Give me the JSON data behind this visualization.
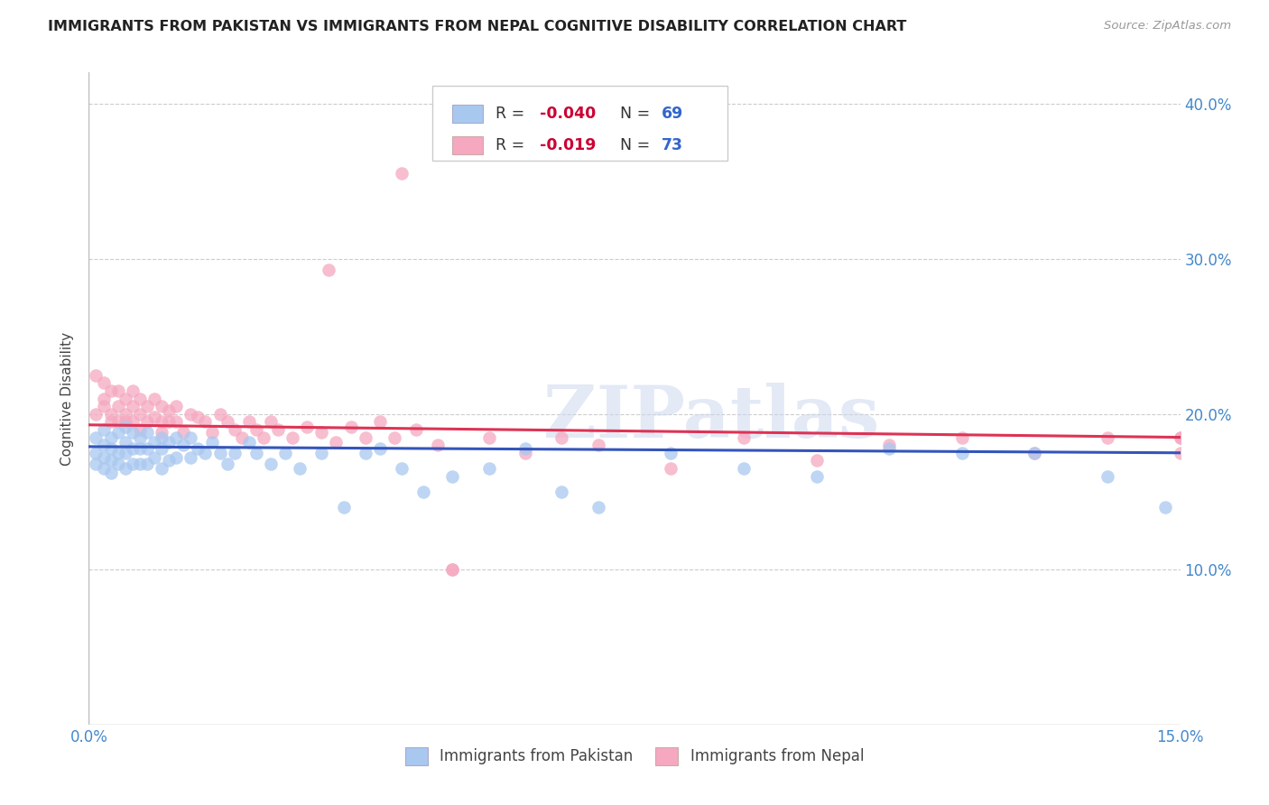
{
  "title": "IMMIGRANTS FROM PAKISTAN VS IMMIGRANTS FROM NEPAL COGNITIVE DISABILITY CORRELATION CHART",
  "source": "Source: ZipAtlas.com",
  "ylabel_label": "Cognitive Disability",
  "x_min": 0.0,
  "x_max": 0.15,
  "y_min": 0.0,
  "y_max": 0.42,
  "pakistan_color": "#a8c8f0",
  "nepal_color": "#f5a8c0",
  "pakistan_R": -0.04,
  "pakistan_N": 69,
  "nepal_R": -0.019,
  "nepal_N": 73,
  "pakistan_line_color": "#3355bb",
  "nepal_line_color": "#dd3355",
  "legend_R_color": "#cc0033",
  "legend_N_color": "#3366cc",
  "watermark": "ZIPatlas",
  "tick_color": "#4488cc",
  "grid_color": "#cccccc",
  "pakistan_x": [
    0.001,
    0.001,
    0.001,
    0.002,
    0.002,
    0.002,
    0.002,
    0.003,
    0.003,
    0.003,
    0.003,
    0.004,
    0.004,
    0.004,
    0.005,
    0.005,
    0.005,
    0.005,
    0.006,
    0.006,
    0.006,
    0.007,
    0.007,
    0.007,
    0.008,
    0.008,
    0.008,
    0.009,
    0.009,
    0.01,
    0.01,
    0.01,
    0.011,
    0.011,
    0.012,
    0.012,
    0.013,
    0.014,
    0.014,
    0.015,
    0.016,
    0.017,
    0.018,
    0.019,
    0.02,
    0.022,
    0.023,
    0.025,
    0.027,
    0.029,
    0.032,
    0.035,
    0.038,
    0.04,
    0.043,
    0.046,
    0.05,
    0.055,
    0.06,
    0.065,
    0.07,
    0.08,
    0.09,
    0.1,
    0.11,
    0.12,
    0.13,
    0.14,
    0.148
  ],
  "pakistan_y": [
    0.185,
    0.175,
    0.168,
    0.19,
    0.18,
    0.172,
    0.165,
    0.185,
    0.178,
    0.17,
    0.162,
    0.188,
    0.175,
    0.168,
    0.192,
    0.182,
    0.175,
    0.165,
    0.188,
    0.178,
    0.168,
    0.185,
    0.178,
    0.168,
    0.188,
    0.178,
    0.168,
    0.182,
    0.172,
    0.185,
    0.178,
    0.165,
    0.182,
    0.17,
    0.185,
    0.172,
    0.18,
    0.185,
    0.172,
    0.178,
    0.175,
    0.182,
    0.175,
    0.168,
    0.175,
    0.182,
    0.175,
    0.168,
    0.175,
    0.165,
    0.175,
    0.14,
    0.175,
    0.178,
    0.165,
    0.15,
    0.16,
    0.165,
    0.178,
    0.15,
    0.14,
    0.175,
    0.165,
    0.16,
    0.178,
    0.175,
    0.175,
    0.16,
    0.14
  ],
  "nepal_x": [
    0.001,
    0.001,
    0.002,
    0.002,
    0.002,
    0.003,
    0.003,
    0.003,
    0.004,
    0.004,
    0.004,
    0.005,
    0.005,
    0.005,
    0.006,
    0.006,
    0.006,
    0.007,
    0.007,
    0.007,
    0.008,
    0.008,
    0.009,
    0.009,
    0.01,
    0.01,
    0.01,
    0.011,
    0.011,
    0.012,
    0.012,
    0.013,
    0.014,
    0.015,
    0.016,
    0.017,
    0.018,
    0.019,
    0.02,
    0.021,
    0.022,
    0.023,
    0.024,
    0.025,
    0.026,
    0.028,
    0.03,
    0.032,
    0.034,
    0.036,
    0.038,
    0.04,
    0.042,
    0.045,
    0.048,
    0.05,
    0.055,
    0.06,
    0.065,
    0.07,
    0.08,
    0.09,
    0.1,
    0.11,
    0.12,
    0.13,
    0.14,
    0.15,
    0.15,
    0.15,
    0.035,
    0.038,
    0.04
  ],
  "nepal_y": [
    0.2,
    0.225,
    0.21,
    0.22,
    0.205,
    0.215,
    0.2,
    0.195,
    0.215,
    0.205,
    0.195,
    0.21,
    0.2,
    0.195,
    0.215,
    0.205,
    0.195,
    0.21,
    0.2,
    0.19,
    0.205,
    0.195,
    0.21,
    0.198,
    0.205,
    0.195,
    0.188,
    0.202,
    0.195,
    0.205,
    0.195,
    0.188,
    0.2,
    0.198,
    0.195,
    0.188,
    0.2,
    0.195,
    0.19,
    0.185,
    0.195,
    0.19,
    0.185,
    0.195,
    0.19,
    0.185,
    0.192,
    0.188,
    0.182,
    0.192,
    0.185,
    0.195,
    0.185,
    0.19,
    0.18,
    0.1,
    0.185,
    0.175,
    0.185,
    0.18,
    0.165,
    0.185,
    0.17,
    0.18,
    0.185,
    0.175,
    0.185,
    0.185,
    0.175,
    0.185,
    0.29,
    0.1,
    0.1
  ]
}
